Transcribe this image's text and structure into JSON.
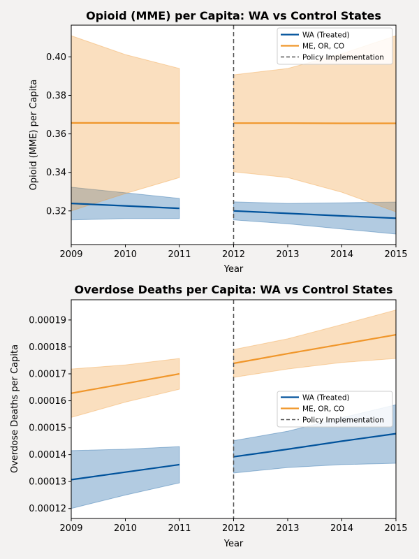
{
  "chart_data": [
    {
      "type": "line",
      "title": "Opioid (MME) per Capita: WA vs Control States",
      "xlabel": "Year",
      "ylabel": "Opioid (MME) per Capita",
      "xlim": [
        2009,
        2015
      ],
      "ylim": [
        0.3025,
        0.4165
      ],
      "xticks": [
        2009,
        2010,
        2011,
        2012,
        2013,
        2014,
        2015
      ],
      "yticks": [
        "0.32",
        "0.34",
        "0.36",
        "0.38",
        "0.40"
      ],
      "policy_year": 2012,
      "legend_position": "upper right",
      "series": [
        {
          "name": "WA (Treated)",
          "color": "#00529b",
          "segments": [
            {
              "x": [
                2009,
                2010,
                2011
              ],
              "y": [
                0.3239,
                0.3226,
                0.3213
              ],
              "lower": [
                0.3153,
                0.316,
                0.316
              ],
              "upper": [
                0.3323,
                0.3294,
                0.3265
              ]
            },
            {
              "x": [
                2012,
                2013,
                2014,
                2015
              ],
              "y": [
                0.32,
                0.3187,
                0.3174,
                0.3162
              ],
              "lower": [
                0.3153,
                0.3133,
                0.3106,
                0.308
              ],
              "upper": [
                0.3247,
                0.3239,
                0.3242,
                0.3246
              ]
            }
          ]
        },
        {
          "name": "ME, OR, CO",
          "color": "#f0962a",
          "segments": [
            {
              "x": [
                2009,
                2010,
                2011
              ],
              "y": [
                0.3657,
                0.3657,
                0.3656
              ],
              "lower": [
                0.32,
                0.329,
                0.3373
              ],
              "upper": [
                0.411,
                0.4012,
                0.394
              ]
            },
            {
              "x": [
                2012,
                2013,
                2014,
                2015
              ],
              "y": [
                0.3656,
                0.3656,
                0.3655,
                0.3655
              ],
              "lower": [
                0.3403,
                0.3373,
                0.3297,
                0.3195
              ],
              "upper": [
                0.3907,
                0.394,
                0.4017,
                0.411
              ]
            }
          ]
        }
      ],
      "reference_line": {
        "name": "Policy Implementation",
        "color": "#555555"
      }
    },
    {
      "type": "line",
      "title": "Overdose Deaths per Capita: WA vs Control States",
      "xlabel": "Year",
      "ylabel": "Overdose Deaths per Capita",
      "xlim": [
        2009,
        2015
      ],
      "ylim": [
        0.0001163,
        0.0001975
      ],
      "xticks": [
        2009,
        2010,
        2011,
        2012,
        2013,
        2014,
        2015
      ],
      "yticks": [
        "0.00012",
        "0.00013",
        "0.00014",
        "0.00015",
        "0.00016",
        "0.00017",
        "0.00018",
        "0.00019"
      ],
      "policy_year": 2012,
      "legend_position": "center right",
      "series": [
        {
          "name": "WA (Treated)",
          "color": "#00529b",
          "segments": [
            {
              "x": [
                2009,
                2010,
                2011
              ],
              "y": [
                0.0001307,
                0.0001335,
                0.0001363
              ],
              "lower": [
                0.00012,
                0.000125,
                0.0001295
              ],
              "upper": [
                0.0001415,
                0.000142,
                0.000143
              ]
            },
            {
              "x": [
                2012,
                2013,
                2014,
                2015
              ],
              "y": [
                0.0001392,
                0.000142,
                0.000145,
                0.0001478
              ],
              "lower": [
                0.0001332,
                0.0001352,
                0.0001363,
                0.0001368
              ],
              "upper": [
                0.0001452,
                0.0001487,
                0.0001537,
                0.0001585
              ]
            }
          ]
        },
        {
          "name": "ME, OR, CO",
          "color": "#f0962a",
          "segments": [
            {
              "x": [
                2009,
                2010,
                2011
              ],
              "y": [
                0.0001628,
                0.0001664,
                0.00017
              ],
              "lower": [
                0.0001538,
                0.0001595,
                0.0001643
              ],
              "upper": [
                0.0001718,
                0.0001733,
                0.0001757
              ]
            },
            {
              "x": [
                2012,
                2013,
                2014,
                2015
              ],
              "y": [
                0.0001739,
                0.0001775,
                0.000181,
                0.0001845
              ],
              "lower": [
                0.0001687,
                0.0001718,
                0.0001742,
                0.0001757
              ],
              "upper": [
                0.000179,
                0.000183,
                0.0001883,
                0.0001937
              ]
            }
          ]
        }
      ],
      "reference_line": {
        "name": "Policy Implementation",
        "color": "#555555"
      }
    }
  ]
}
